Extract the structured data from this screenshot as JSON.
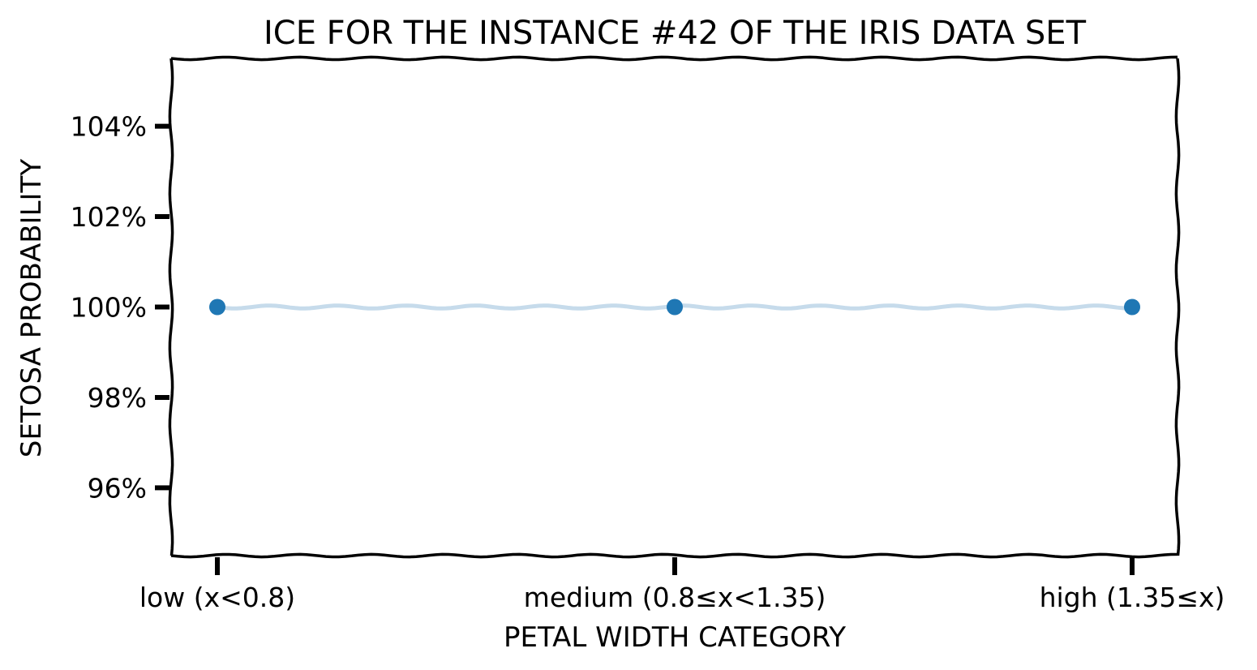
{
  "chart_data": {
    "type": "line",
    "title": "ICE FOR THE INSTANCE #42 OF THE IRIS DATA SET",
    "xlabel": "PETAL WIDTH CATEGORY",
    "ylabel": "SETOSA PROBABILITY",
    "categories": [
      "low (x<0.8)",
      "medium (0.8≤x<1.35)",
      "high (1.35≤x)"
    ],
    "series": [
      {
        "values": [
          1.0,
          1.0,
          1.0
        ]
      }
    ],
    "ylim": [
      0.945,
      1.055
    ],
    "yticks": [
      0.96,
      0.98,
      1.0,
      1.02,
      1.04
    ],
    "ytick_labels": [
      "96%",
      "98%",
      "100%",
      "102%",
      "104%"
    ],
    "grid": false,
    "colors": {
      "point": "#1f77b4",
      "line": "#c6dbeb",
      "frame": "#000000"
    }
  }
}
